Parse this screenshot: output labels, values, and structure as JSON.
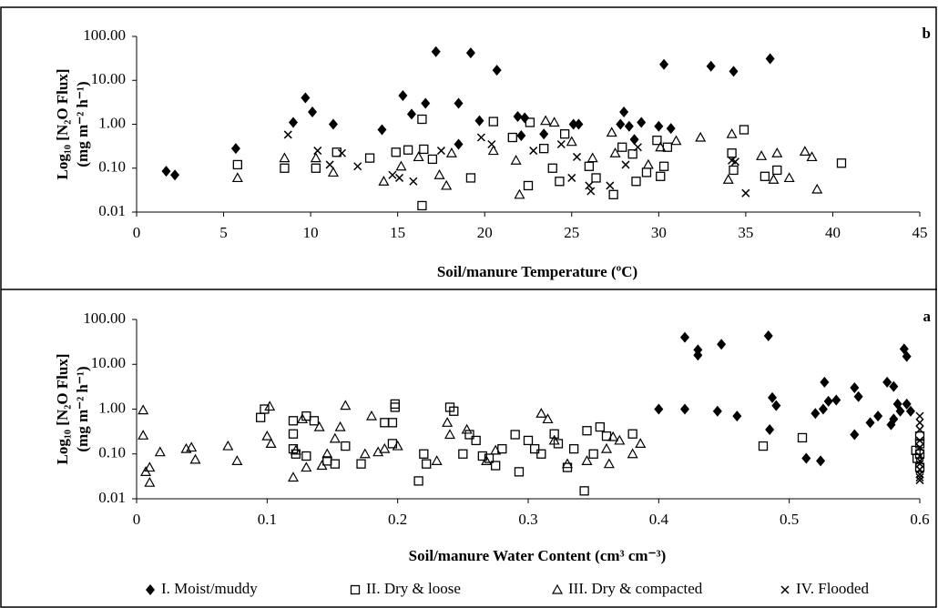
{
  "chart_data": [
    {
      "type": "scatter",
      "panel_label": "b",
      "x_label": "Soil/manure Temperature (ºC)",
      "y_label": [
        "Log₁₀ [N₂O Flux]",
        "(mg m⁻² h⁻¹)"
      ],
      "log_y": true,
      "grid": false,
      "xlim": [
        0,
        45
      ],
      "xticks": [
        0,
        5,
        10,
        15,
        20,
        25,
        30,
        35,
        40,
        45
      ],
      "ylim": [
        0.01,
        100
      ],
      "yticks": [
        {
          "value": 0.01,
          "label": "0.01"
        },
        {
          "value": 0.1,
          "label": "0.10"
        },
        {
          "value": 1,
          "label": "1.00"
        },
        {
          "value": 10,
          "label": "10.00"
        },
        {
          "value": 100,
          "label": "100.00"
        }
      ],
      "series": [
        {
          "marker": "diamond",
          "color": "#000000",
          "x": [
            1.7,
            2.2,
            5.7,
            9.0,
            9.7,
            10.1,
            11.3,
            14.1,
            15.3,
            15.8,
            16.6,
            17.2,
            18.5,
            18.5,
            19.2,
            19.7,
            20.7,
            21.9,
            22.3,
            22.1,
            23.4,
            25.1,
            25.4,
            27.8,
            28.0,
            28.3,
            28.6,
            29.0,
            30.0,
            30.3,
            30.7,
            33.0,
            34.3,
            36.4
          ],
          "values": [
            0.085,
            0.07,
            0.28,
            1.1,
            4.0,
            1.9,
            1.0,
            0.75,
            4.5,
            1.7,
            3.0,
            45,
            0.35,
            3.0,
            42,
            1.2,
            17,
            1.5,
            1.4,
            0.55,
            0.6,
            1.0,
            1.0,
            1.0,
            1.9,
            0.9,
            0.45,
            1.1,
            0.9,
            23,
            0.8,
            21,
            16,
            31
          ]
        },
        {
          "marker": "square",
          "color": "#000000",
          "x": [
            5.8,
            8.5,
            10.3,
            11.5,
            13.4,
            14.9,
            15.6,
            16.4,
            16.4,
            16.5,
            17.0,
            19.2,
            20.5,
            21.6,
            22.5,
            22.6,
            23.4,
            23.9,
            24.3,
            24.6,
            26.0,
            26.4,
            27.4,
            27.9,
            28.5,
            28.7,
            29.3,
            29.9,
            30.1,
            30.3,
            30.5,
            34.2,
            34.3,
            34.9,
            36.1,
            36.8,
            40.5
          ],
          "values": [
            0.12,
            0.1,
            0.1,
            0.23,
            0.17,
            0.23,
            0.26,
            1.3,
            0.014,
            0.27,
            0.16,
            0.06,
            1.15,
            0.5,
            0.04,
            1.1,
            0.28,
            0.1,
            0.05,
            0.6,
            0.11,
            0.06,
            0.025,
            0.3,
            0.21,
            0.05,
            0.08,
            0.43,
            0.065,
            0.11,
            0.3,
            0.22,
            0.09,
            0.75,
            0.065,
            0.09,
            0.13
          ]
        },
        {
          "marker": "triangle",
          "color": "#000000",
          "x": [
            5.8,
            8.5,
            10.3,
            11.3,
            14.2,
            15.2,
            16.2,
            17.4,
            17.8,
            18.1,
            20.5,
            21.8,
            22.0,
            23.5,
            24.0,
            25.0,
            26.2,
            27.3,
            27.5,
            29.4,
            30.1,
            31.0,
            32.4,
            34.0,
            34.2,
            35.9,
            36.6,
            36.8,
            37.5,
            38.4,
            38.8,
            39.1
          ],
          "values": [
            0.06,
            0.17,
            0.17,
            0.08,
            0.05,
            0.11,
            0.18,
            0.07,
            0.04,
            0.22,
            0.25,
            0.15,
            0.025,
            1.2,
            1.1,
            0.4,
            0.17,
            0.65,
            0.22,
            0.12,
            0.3,
            0.42,
            0.5,
            0.055,
            0.6,
            0.19,
            0.055,
            0.22,
            0.06,
            0.24,
            0.18,
            0.033
          ]
        },
        {
          "marker": "cross",
          "color": "#000000",
          "x": [
            8.7,
            10.4,
            11.1,
            11.8,
            12.7,
            14.7,
            15.1,
            15.9,
            17.5,
            19.8,
            20.4,
            22.8,
            24.4,
            25.0,
            25.3,
            26.0,
            26.1,
            27.2,
            28.1,
            28.8,
            34.2,
            34.4,
            35.0
          ],
          "values": [
            0.58,
            0.25,
            0.12,
            0.22,
            0.11,
            0.07,
            0.06,
            0.05,
            0.25,
            0.5,
            0.35,
            0.25,
            0.35,
            0.06,
            0.18,
            0.04,
            0.03,
            0.04,
            0.12,
            0.3,
            0.15,
            0.14,
            0.027
          ]
        }
      ]
    },
    {
      "type": "scatter",
      "panel_label": "a",
      "x_label": "Soil/manure Water Content (cm³ cm⁻³)",
      "y_label": [
        "Log₁₀ [N₂O Flux]",
        "(mg m⁻² h⁻¹)"
      ],
      "log_y": true,
      "grid": false,
      "legend": "bottom",
      "xlim": [
        0,
        0.6
      ],
      "xticks": [
        0,
        0.1,
        0.2,
        0.3,
        0.4,
        0.5,
        0.6
      ],
      "ylim": [
        0.01,
        100
      ],
      "yticks": [
        {
          "value": 0.01,
          "label": "0.01"
        },
        {
          "value": 0.1,
          "label": "0.10"
        },
        {
          "value": 1,
          "label": "1.00"
        },
        {
          "value": 10,
          "label": "10.00"
        },
        {
          "value": 100,
          "label": "100.00"
        }
      ],
      "series": [
        {
          "name": "I. Moist/muddy",
          "marker": "diamond",
          "color": "#000000",
          "x": [
            0.4,
            0.42,
            0.42,
            0.43,
            0.43,
            0.445,
            0.448,
            0.46,
            0.484,
            0.485,
            0.487,
            0.49,
            0.513,
            0.52,
            0.524,
            0.526,
            0.527,
            0.53,
            0.536,
            0.55,
            0.55,
            0.553,
            0.562,
            0.568,
            0.575,
            0.578,
            0.58,
            0.58,
            0.583,
            0.585,
            0.588,
            0.59,
            0.59,
            0.593
          ],
          "values": [
            1.0,
            40,
            1.0,
            21,
            16,
            0.9,
            28,
            0.7,
            43,
            0.35,
            1.8,
            1.2,
            0.08,
            0.8,
            0.07,
            1.0,
            4.0,
            1.5,
            1.6,
            3.0,
            0.27,
            1.9,
            0.5,
            0.7,
            4.0,
            0.45,
            3.2,
            0.6,
            1.3,
            0.9,
            22,
            15,
            1.3,
            0.9
          ]
        },
        {
          "name": "II. Dry & loose",
          "marker": "square",
          "color": "#000000",
          "x": [
            0.095,
            0.098,
            0.12,
            0.12,
            0.12,
            0.122,
            0.13,
            0.13,
            0.136,
            0.146,
            0.152,
            0.16,
            0.172,
            0.19,
            0.196,
            0.198,
            0.198,
            0.196,
            0.216,
            0.22,
            0.222,
            0.24,
            0.243,
            0.25,
            0.255,
            0.26,
            0.265,
            0.27,
            0.275,
            0.28,
            0.29,
            0.293,
            0.3,
            0.305,
            0.31,
            0.32,
            0.323,
            0.33,
            0.335,
            0.343,
            0.345,
            0.35,
            0.355,
            0.36,
            0.38,
            0.48,
            0.51,
            0.597,
            0.598,
            0.6,
            0.6,
            0.6,
            0.6
          ],
          "values": [
            0.65,
            1.0,
            0.55,
            0.13,
            0.28,
            0.1,
            0.7,
            0.09,
            0.55,
            0.07,
            0.06,
            0.15,
            0.06,
            0.5,
            0.5,
            1.1,
            1.3,
            0.17,
            0.025,
            0.1,
            0.06,
            1.1,
            0.9,
            0.1,
            0.27,
            0.2,
            0.09,
            0.08,
            0.055,
            0.13,
            0.27,
            0.04,
            0.2,
            0.13,
            0.1,
            0.28,
            0.17,
            0.05,
            0.13,
            0.015,
            0.33,
            0.1,
            0.4,
            0.25,
            0.28,
            0.15,
            0.23,
            0.12,
            0.08,
            0.25,
            0.05,
            0.17,
            0.1
          ]
        },
        {
          "name": "III. Dry & compacted",
          "marker": "triangle",
          "color": "#000000",
          "x": [
            0.005,
            0.005,
            0.007,
            0.01,
            0.01,
            0.018,
            0.038,
            0.042,
            0.045,
            0.07,
            0.077,
            0.1,
            0.102,
            0.103,
            0.12,
            0.122,
            0.127,
            0.13,
            0.14,
            0.142,
            0.146,
            0.152,
            0.156,
            0.16,
            0.175,
            0.18,
            0.185,
            0.19,
            0.2,
            0.23,
            0.238,
            0.24,
            0.253,
            0.268,
            0.275,
            0.31,
            0.315,
            0.32,
            0.33,
            0.345,
            0.36,
            0.362,
            0.365,
            0.37,
            0.38,
            0.386
          ],
          "values": [
            0.95,
            0.26,
            0.04,
            0.05,
            0.023,
            0.11,
            0.13,
            0.14,
            0.075,
            0.15,
            0.07,
            0.25,
            1.15,
            0.17,
            0.03,
            0.12,
            0.6,
            0.05,
            0.4,
            0.055,
            0.1,
            0.22,
            0.4,
            1.2,
            0.1,
            0.7,
            0.11,
            0.13,
            0.15,
            0.07,
            0.5,
            0.27,
            0.35,
            0.07,
            0.12,
            0.8,
            0.6,
            0.2,
            0.06,
            0.07,
            0.13,
            0.06,
            0.24,
            0.2,
            0.1,
            0.17
          ]
        },
        {
          "name": "IV. Flooded",
          "marker": "cross",
          "color": "#000000",
          "x": [
            0.6,
            0.6,
            0.6,
            0.6,
            0.6,
            0.6,
            0.6,
            0.6,
            0.6,
            0.6,
            0.6,
            0.6
          ],
          "values": [
            0.7,
            0.5,
            0.35,
            0.2,
            0.14,
            0.09,
            0.07,
            0.06,
            0.045,
            0.035,
            0.03,
            0.026
          ]
        }
      ]
    }
  ]
}
